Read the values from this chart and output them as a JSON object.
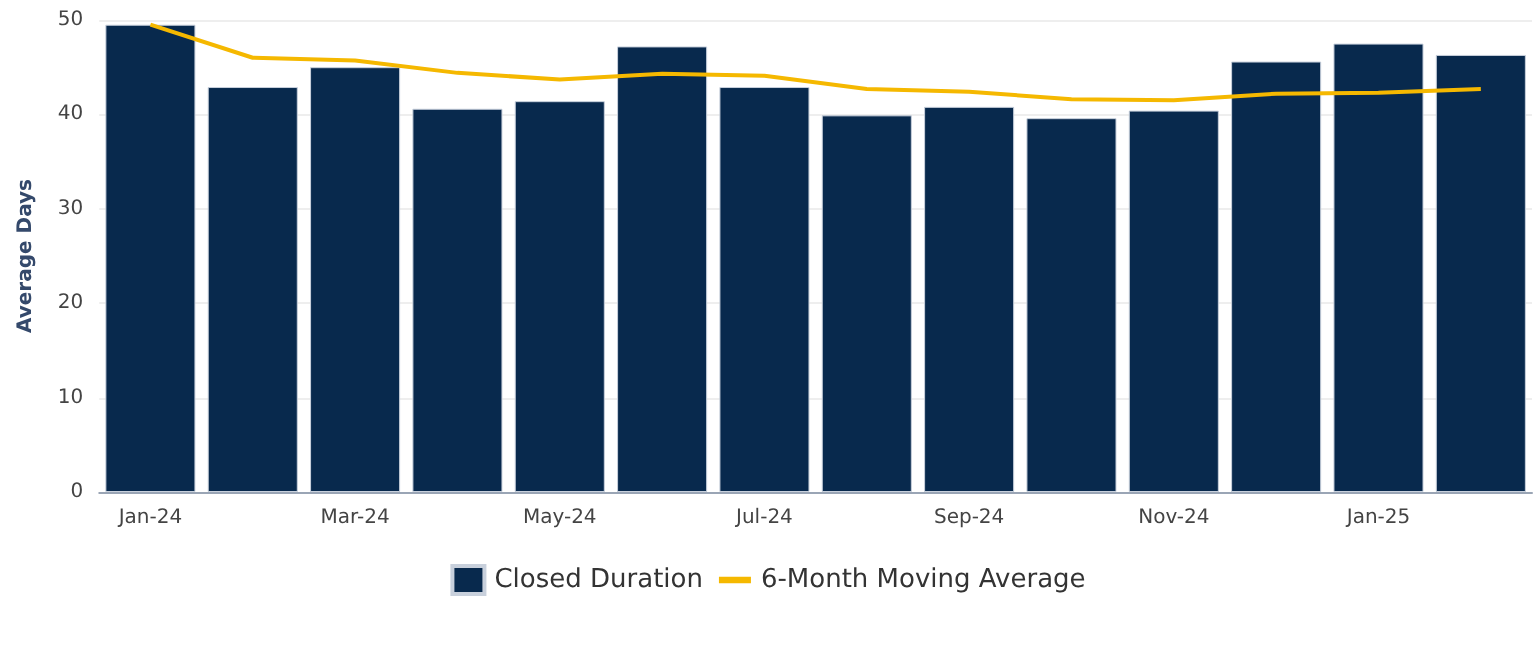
{
  "chart_data": {
    "type": "bar",
    "ylabel": "Average Days",
    "categories": [
      "Jan-24",
      null,
      "Mar-24",
      null,
      "May-24",
      null,
      "Jul-24",
      null,
      "Sep-24",
      null,
      "Nov-24",
      null,
      "Jan-25",
      null
    ],
    "series": [
      {
        "name": "Closed Duration",
        "color": "#08294d",
        "values": [
          49.5,
          42.9,
          45.0,
          40.6,
          41.4,
          47.2,
          42.9,
          39.9,
          40.8,
          39.6,
          40.4,
          45.6,
          47.5,
          46.3
        ]
      },
      {
        "name": "6-Month Moving Average",
        "type": "line",
        "color": "#f5b800",
        "values": [
          49.5,
          46.0,
          45.7,
          44.4,
          43.7,
          44.3,
          44.1,
          42.7,
          42.4,
          41.6,
          41.5,
          42.2,
          42.3,
          42.7
        ]
      }
    ],
    "ylim": [
      0,
      50
    ],
    "yticks": [
      0,
      10,
      20,
      30,
      40,
      50
    ],
    "grid": "y",
    "legend": "bottom",
    "marker": "none",
    "line_style": "solid"
  }
}
